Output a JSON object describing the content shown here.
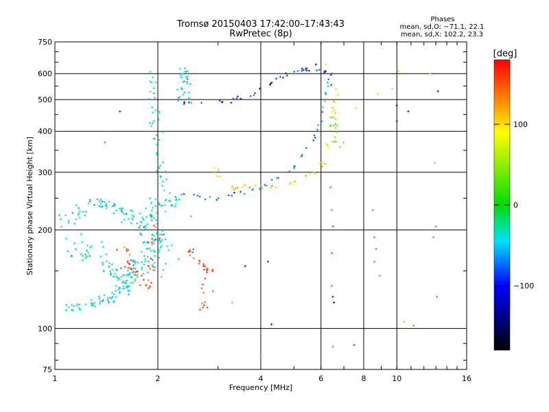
{
  "chart_data": {
    "type": "scatter",
    "title": "Tromsø 20150403 17:42:00–17:43:43",
    "subtitle": "RwPretec (8p)",
    "xlabel": "Frequency [MHz]",
    "ylabel": "Stationary phase Virtual Height [km]",
    "x_scale": "log2",
    "y_scale": "log",
    "xlim": [
      1,
      16
    ],
    "ylim": [
      75,
      750
    ],
    "x_ticks": [
      1,
      2,
      4,
      6,
      8,
      10,
      16
    ],
    "x_ticks_labels": [
      "1",
      "2",
      "4",
      "6",
      "8",
      "10",
      "16"
    ],
    "y_ticks": [
      75,
      100,
      200,
      300,
      400,
      500,
      600,
      750
    ],
    "y_ticks_labels": [
      "75",
      "100",
      "200",
      "300",
      "400",
      "500",
      "600",
      "750"
    ],
    "grid": true,
    "phase_legend": {
      "title": "Phases",
      "line_o": "mean, sd,O: −71.1, 22.1",
      "line_x": "mean, sd,X: 102.2, 23.3"
    },
    "colorbar": {
      "label": "[deg]",
      "range": [
        -180,
        180
      ],
      "ticks": [
        100,
        0,
        -100
      ],
      "ticks_labels": [
        "100",
        "0",
        "−100"
      ],
      "colors": [
        "#ff0000",
        "#ff8000",
        "#ffff00",
        "#00d000",
        "#00e0ff",
        "#0000ff",
        "#000000"
      ]
    },
    "traces": [
      {
        "phase": -70,
        "spread": 0.006,
        "density": 42,
        "points": [
          [
            2.3,
            260
          ],
          [
            2.6,
            252
          ],
          [
            3.0,
            250
          ],
          [
            3.4,
            258
          ],
          [
            3.8,
            265
          ],
          [
            4.2,
            275
          ],
          [
            4.8,
            298
          ],
          [
            5.3,
            330
          ],
          [
            5.7,
            375
          ],
          [
            6.0,
            430
          ],
          [
            6.2,
            500
          ],
          [
            6.35,
            560
          ],
          [
            6.5,
            610
          ]
        ]
      },
      {
        "phase": 110,
        "spread": 0.006,
        "density": 42,
        "points": [
          [
            2.9,
            310
          ],
          [
            3.0,
            290
          ],
          [
            3.3,
            268
          ],
          [
            3.7,
            268
          ],
          [
            4.2,
            270
          ],
          [
            4.8,
            275
          ],
          [
            5.4,
            285
          ],
          [
            5.9,
            305
          ],
          [
            6.2,
            340
          ],
          [
            6.4,
            400
          ],
          [
            6.55,
            470
          ],
          [
            6.65,
            540
          ]
        ]
      },
      {
        "phase": -90,
        "spread": 0.006,
        "density": 38,
        "points": [
          [
            2.3,
            490
          ],
          [
            2.8,
            490
          ],
          [
            3.3,
            498
          ],
          [
            3.8,
            520
          ],
          [
            4.3,
            560
          ],
          [
            4.8,
            600
          ],
          [
            5.3,
            620
          ],
          [
            5.8,
            615
          ],
          [
            6.2,
            610
          ]
        ]
      },
      {
        "phase": -40,
        "spread": 0.008,
        "density": 30,
        "points": [
          [
            2.35,
            500
          ],
          [
            2.35,
            560
          ],
          [
            2.4,
            630
          ],
          [
            2.45,
            560
          ],
          [
            2.45,
            500
          ]
        ]
      },
      {
        "phase": -30,
        "spread": 0.01,
        "density": 40,
        "points": [
          [
            1.9,
            600
          ],
          [
            1.92,
            520
          ],
          [
            1.95,
            460
          ],
          [
            1.97,
            400
          ],
          [
            2.0,
            350
          ],
          [
            2.05,
            300
          ],
          [
            2.1,
            260
          ]
        ]
      },
      {
        "phase": -45,
        "spread": 0.018,
        "density": 110,
        "points": [
          [
            1.05,
            210
          ],
          [
            1.2,
            230
          ],
          [
            1.35,
            240
          ],
          [
            1.5,
            235
          ],
          [
            1.65,
            220
          ],
          [
            1.8,
            210
          ],
          [
            1.95,
            230
          ],
          [
            2.1,
            250
          ],
          [
            2.25,
            245
          ]
        ]
      },
      {
        "phase": -40,
        "spread": 0.028,
        "density": 150,
        "points": [
          [
            1.1,
            180
          ],
          [
            1.3,
            170
          ],
          [
            1.45,
            150
          ],
          [
            1.6,
            140
          ],
          [
            1.75,
            150
          ],
          [
            1.85,
            170
          ],
          [
            1.95,
            200
          ],
          [
            2.0,
            180
          ],
          [
            2.05,
            150
          ]
        ]
      },
      {
        "phase": -40,
        "spread": 0.015,
        "density": 60,
        "points": [
          [
            1.1,
            115
          ],
          [
            1.25,
            118
          ],
          [
            1.4,
            122
          ],
          [
            1.55,
            130
          ],
          [
            1.7,
            140
          ]
        ]
      },
      {
        "phase": 150,
        "spread": 0.012,
        "density": 40,
        "points": [
          [
            1.55,
            180
          ],
          [
            1.65,
            160
          ],
          [
            1.7,
            150
          ],
          [
            1.8,
            140
          ],
          [
            1.9,
            130
          ],
          [
            1.95,
            180
          ],
          [
            2.0,
            210
          ]
        ]
      },
      {
        "phase": 160,
        "spread": 0.01,
        "density": 30,
        "points": [
          [
            2.45,
            180
          ],
          [
            2.55,
            165
          ],
          [
            2.7,
            155
          ],
          [
            2.85,
            150
          ],
          [
            2.6,
            125
          ],
          [
            2.75,
            115
          ]
        ]
      },
      {
        "phase": 40,
        "spread": 0.01,
        "density": 18,
        "points": [
          [
            6.55,
            470
          ],
          [
            6.6,
            430
          ],
          [
            6.65,
            390
          ],
          [
            6.7,
            360
          ]
        ]
      }
    ],
    "scatter_points": [
      [
        1.55,
        460,
        -120
      ],
      [
        1.4,
        370,
        -60
      ],
      [
        2.5,
        220,
        140
      ],
      [
        2.9,
        130,
        150
      ],
      [
        3.3,
        120,
        120
      ],
      [
        3.6,
        155,
        -110
      ],
      [
        4.2,
        160,
        -120
      ],
      [
        4.3,
        103,
        -130
      ],
      [
        4.0,
        82,
        -60
      ],
      [
        6.4,
        270,
        150
      ],
      [
        6.45,
        230,
        150
      ],
      [
        6.5,
        205,
        170
      ],
      [
        6.45,
        170,
        150
      ],
      [
        6.45,
        135,
        -60
      ],
      [
        6.5,
        125,
        -130
      ],
      [
        6.55,
        120,
        -170
      ],
      [
        6.5,
        88,
        150
      ],
      [
        7.5,
        89,
        -80
      ],
      [
        8.6,
        190,
        150
      ],
      [
        8.7,
        175,
        -60
      ],
      [
        8.5,
        230,
        -60
      ],
      [
        8.6,
        160,
        -60
      ],
      [
        8.9,
        145,
        -60
      ],
      [
        10.0,
        480,
        -160
      ],
      [
        10.8,
        460,
        -150
      ],
      [
        10.0,
        430,
        -100
      ],
      [
        10.5,
        105,
        110
      ],
      [
        11.2,
        102,
        150
      ],
      [
        12.9,
        320,
        120
      ],
      [
        13.0,
        205,
        -60
      ],
      [
        12.8,
        190,
        -60
      ],
      [
        13.1,
        125,
        150
      ],
      [
        12.5,
        600,
        110
      ],
      [
        13.2,
        530,
        -100
      ],
      [
        9.7,
        540,
        110
      ],
      [
        8.8,
        520,
        110
      ],
      [
        10.1,
        610,
        110
      ],
      [
        7.6,
        470,
        110
      ],
      [
        5.8,
        640,
        -120
      ],
      [
        6.2,
        640,
        110
      ]
    ]
  }
}
